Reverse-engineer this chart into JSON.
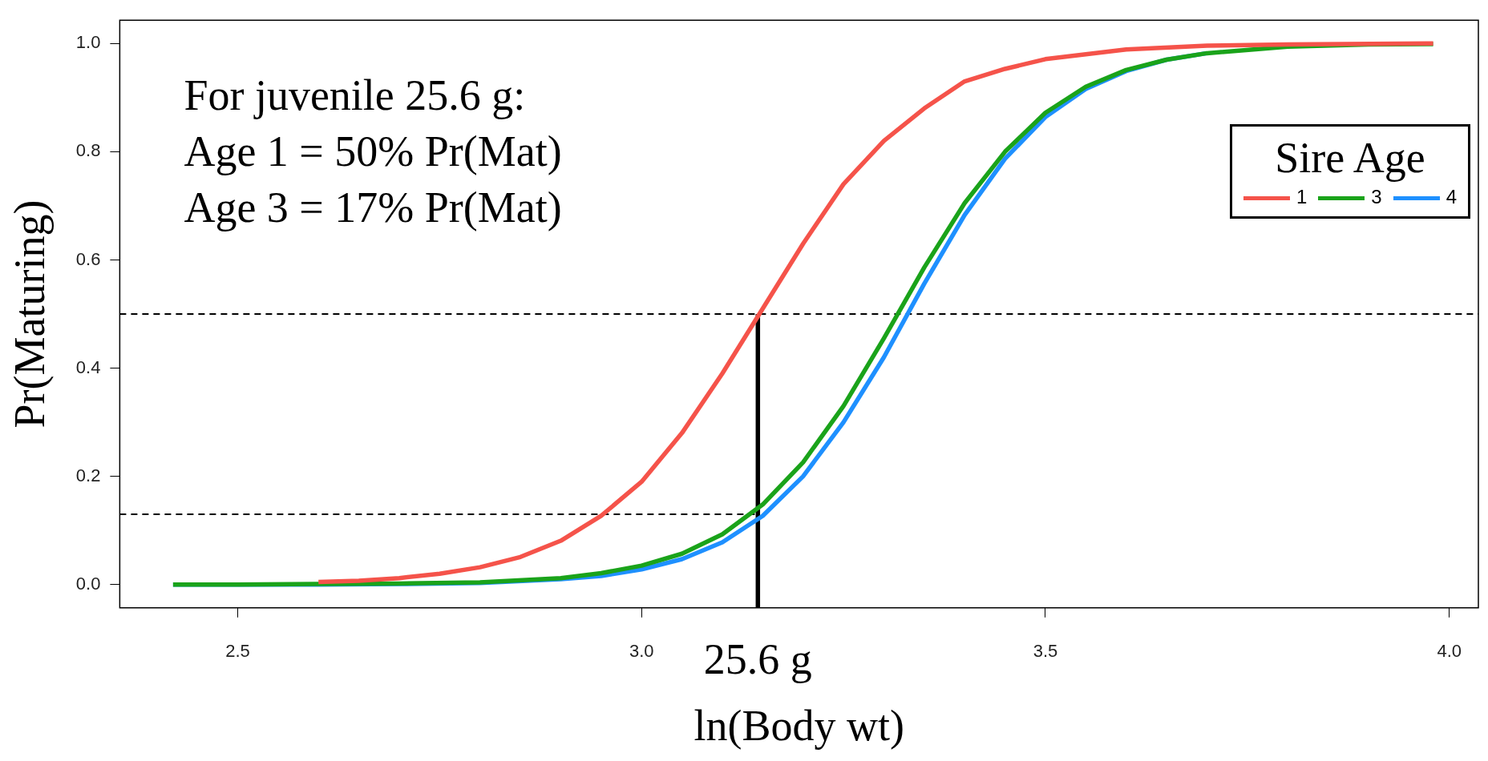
{
  "chart_data": {
    "type": "line",
    "xlabel": "ln(Body wt)",
    "ylabel": "Pr(Maturing)",
    "legend_title": "Sire Age",
    "legend": "top right",
    "grid": false,
    "xlim": [
      2.354,
      4.036
    ],
    "ylim": [
      -0.043,
      1.043
    ],
    "xticks": [
      {
        "value": 2.5,
        "label": "2.5"
      },
      {
        "value": 3,
        "label": "3.0"
      },
      {
        "value": 3.5,
        "label": "3.5"
      },
      {
        "value": 4,
        "label": "4.0"
      }
    ],
    "yticks": [
      {
        "value": 0,
        "label": "0.0"
      },
      {
        "value": 0.2,
        "label": "0.2"
      },
      {
        "value": 0.4,
        "label": "0.4"
      },
      {
        "value": 0.6,
        "label": "0.6"
      },
      {
        "value": 0.8,
        "label": "0.8"
      },
      {
        "value": 1,
        "label": "1.0"
      }
    ],
    "series": [
      {
        "name": "1",
        "color": "#f5534a",
        "x": [
          2.6,
          2.65,
          2.7,
          2.75,
          2.8,
          2.85,
          2.9,
          2.95,
          3.0,
          3.05,
          3.1,
          3.15,
          3.2,
          3.25,
          3.3,
          3.35,
          3.4,
          3.45,
          3.5,
          3.55,
          3.6,
          3.7,
          3.8,
          3.98
        ],
        "values": [
          0.005,
          0.007,
          0.012,
          0.02,
          0.032,
          0.051,
          0.081,
          0.127,
          0.19,
          0.28,
          0.39,
          0.51,
          0.63,
          0.74,
          0.82,
          0.88,
          0.93,
          0.953,
          0.971,
          0.98,
          0.989,
          0.996,
          0.998,
          1.0
        ]
      },
      {
        "name": "3",
        "color": "#1aa31a",
        "x": [
          2.42,
          2.5,
          2.6,
          2.7,
          2.8,
          2.9,
          2.95,
          3.0,
          3.05,
          3.1,
          3.15,
          3.2,
          3.25,
          3.3,
          3.35,
          3.4,
          3.45,
          3.5,
          3.55,
          3.6,
          3.65,
          3.7,
          3.8,
          3.9,
          3.98
        ],
        "values": [
          0.0,
          0.0,
          0.001,
          0.002,
          0.004,
          0.012,
          0.021,
          0.035,
          0.057,
          0.093,
          0.148,
          0.226,
          0.33,
          0.455,
          0.586,
          0.705,
          0.8,
          0.872,
          0.92,
          0.951,
          0.97,
          0.982,
          0.994,
          0.998,
          0.999
        ]
      },
      {
        "name": "4",
        "color": "#1e90ff",
        "x": [
          2.42,
          2.5,
          2.6,
          2.7,
          2.8,
          2.9,
          2.95,
          3.0,
          3.05,
          3.1,
          3.15,
          3.2,
          3.25,
          3.3,
          3.35,
          3.4,
          3.45,
          3.5,
          3.55,
          3.6,
          3.65,
          3.7
        ],
        "values": [
          0.0,
          0.0,
          0.0,
          0.001,
          0.003,
          0.01,
          0.016,
          0.028,
          0.047,
          0.078,
          0.127,
          0.2,
          0.3,
          0.42,
          0.556,
          0.683,
          0.787,
          0.864,
          0.916,
          0.949,
          0.97,
          0.982
        ]
      },
      {
        "color": "#000000",
        "line_style": "dashed",
        "x": [
          2.354,
          4.036
        ],
        "values": [
          0.5,
          0.5
        ]
      },
      {
        "color": "#000000",
        "line_style": "dashed",
        "x": [
          2.354,
          3.144
        ],
        "values": [
          0.13,
          0.13
        ]
      },
      {
        "color": "#000000",
        "x": [
          3.144,
          3.144
        ],
        "values": [
          -0.043,
          0.5
        ]
      }
    ],
    "annotations": [
      "For juvenile 25.6 g:",
      "Age 1 = 50% Pr(Mat)",
      "Age 3 = 17% Pr(Mat)",
      {
        "text": "25.6 g",
        "x": 3.144,
        "y": -0.043
      }
    ]
  }
}
